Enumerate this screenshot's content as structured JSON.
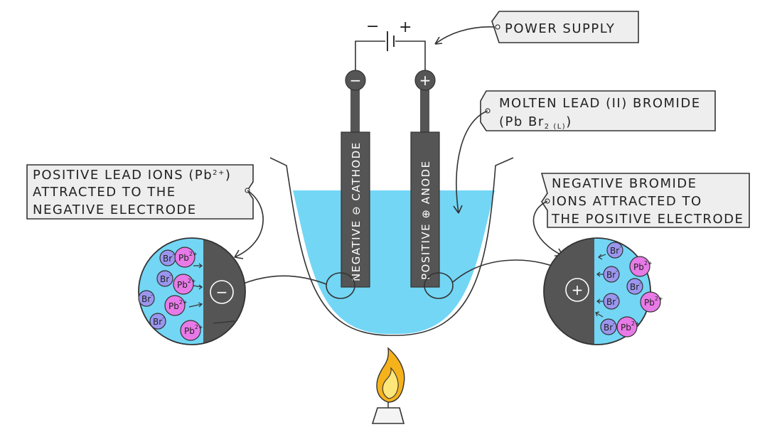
{
  "labels": {
    "power_supply": "POWER SUPPLY",
    "molten_line1": "MOLTEN  LEAD (II) BROMIDE",
    "molten_line2_pre": "(Pb Br",
    "molten_line2_sub": "2 (L)",
    "molten_line2_post": ")",
    "positive_ions_line1_pre": "POSITIVE  LEAD IONS (Pb",
    "positive_ions_line1_sup": "2+",
    "positive_ions_line1_post": ")",
    "positive_ions_line2": "ATTRACTED  TO  THE",
    "positive_ions_line3": "NEGATIVE  ELECTRODE",
    "negative_ions_line1": "NEGATIVE  BROMIDE",
    "negative_ions_line2": "IONS  ATTRACTED  TO",
    "negative_ions_line3": "THE  POSITIVE  ELECTRODE",
    "cathode_text": "NEGATIVE  ⊖  CATHODE",
    "anode_text": "POSITIVE  ⊕  ANODE",
    "minus_sign": "−",
    "plus_sign": "+",
    "cathode_terminal": "−",
    "anode_terminal": "+",
    "cathode_zoom_symbol": "−",
    "anode_zoom_symbol": "+"
  },
  "ions": {
    "lead": "Pb",
    "lead_charge": "2+",
    "bromide": "Br",
    "bromide_charge": "-"
  },
  "colors": {
    "electrolyte": "#73d6f5",
    "electrode": "#555555",
    "lead_ion": "#e87ae8",
    "bromide_ion": "#9a96ef",
    "flame_outer": "#f5b21b",
    "flame_inner": "#fde67a"
  }
}
